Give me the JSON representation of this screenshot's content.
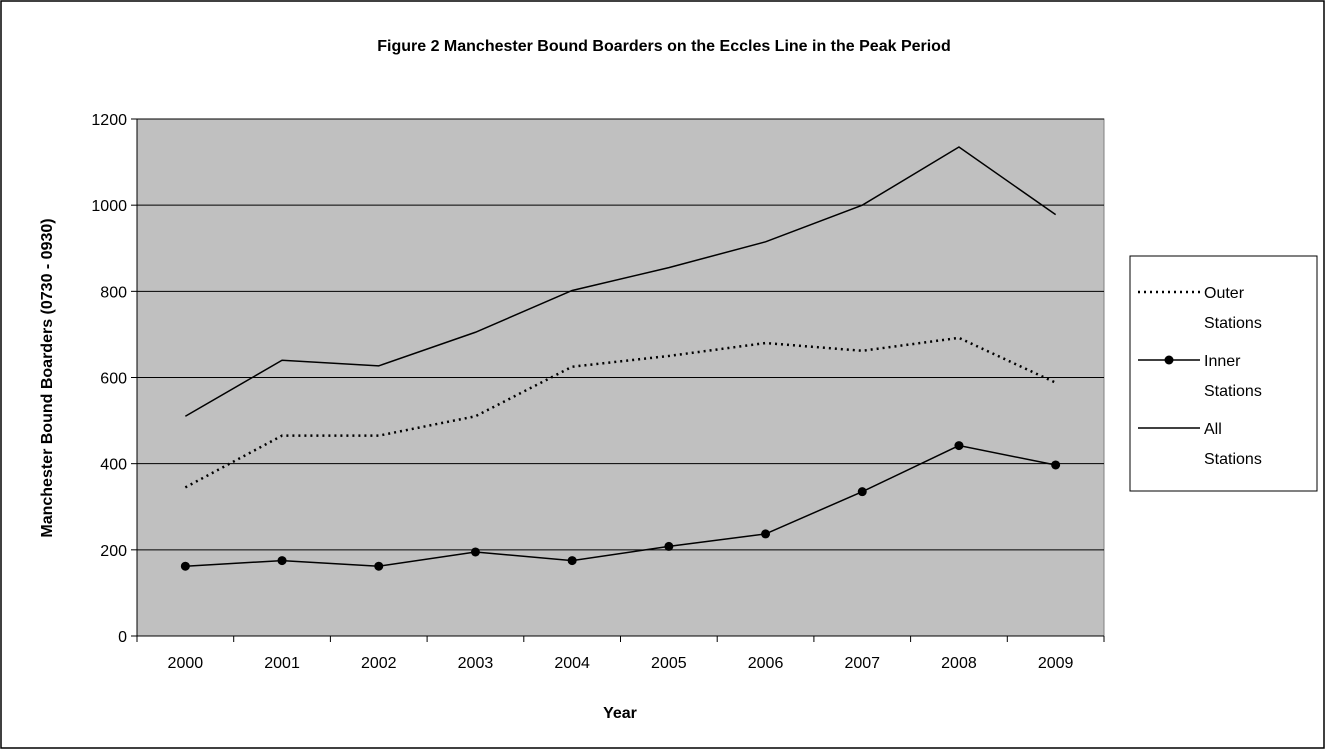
{
  "chart_data": {
    "type": "line",
    "title": "Figure 2 Manchester Bound Boarders on the Eccles Line in the Peak Period",
    "xlabel": "Year",
    "ylabel": "Manchester Bound Boarders (0730 - 0930)",
    "categories": [
      "2000",
      "2001",
      "2002",
      "2003",
      "2004",
      "2005",
      "2006",
      "2007",
      "2008",
      "2009"
    ],
    "ylim": [
      0,
      1200
    ],
    "yticks": [
      0,
      200,
      400,
      600,
      800,
      1000,
      1200
    ],
    "grid": true,
    "legend_position": "right",
    "series": [
      {
        "name": "Outer Stations",
        "style": "dotted",
        "values": [
          345,
          465,
          465,
          510,
          625,
          650,
          680,
          662,
          692,
          588
        ]
      },
      {
        "name": "Inner Stations",
        "style": "solid-circle-markers",
        "values": [
          162,
          175,
          162,
          195,
          175,
          208,
          237,
          335,
          442,
          397
        ]
      },
      {
        "name": "All Stations",
        "style": "solid",
        "values": [
          510,
          640,
          627,
          705,
          802,
          855,
          915,
          1000,
          1135,
          978
        ]
      }
    ],
    "colors": {
      "plot_background": "#c0c0c0",
      "line": "#000000",
      "page": "#ffffff"
    }
  }
}
